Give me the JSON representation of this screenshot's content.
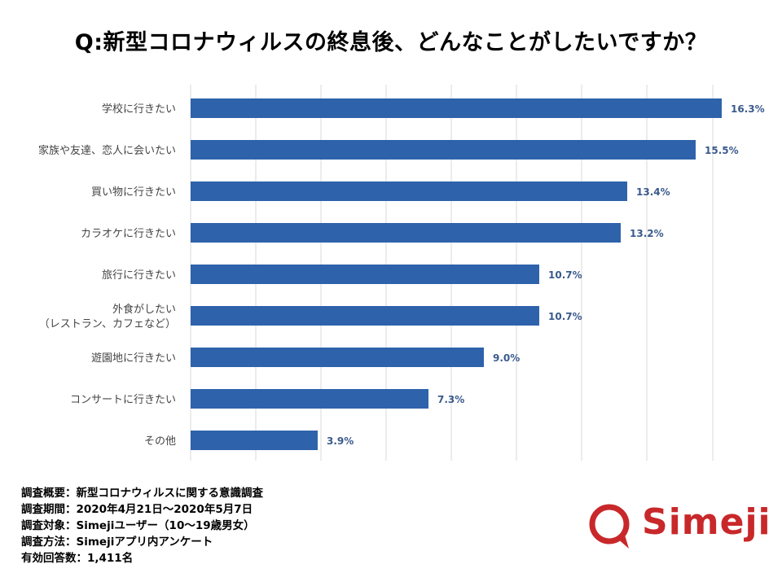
{
  "title": "Q:新型コロナウィルスの終息後、どんなことがしたいですか？",
  "chart_data": {
    "type": "bar",
    "orientation": "horizontal",
    "categories": [
      "学校に行きたい",
      "家族や友達、恋人に会いたい",
      "買い物に行きたい",
      "カラオケに行きたい",
      "旅行に行きたい",
      "外食がしたい\n（レストラン、カフェなど）",
      "遊園地に行きたい",
      "コンサートに行きたい",
      "その他"
    ],
    "values": [
      16.3,
      15.5,
      13.4,
      13.2,
      10.7,
      10.7,
      9.0,
      7.3,
      3.9
    ],
    "data_labels": [
      "16.3%",
      "15.5%",
      "13.4%",
      "13.2%",
      "10.7%",
      "10.7%",
      "9.0%",
      "7.3%",
      "3.9%"
    ],
    "xlim": [
      0,
      16.3
    ],
    "grid": true,
    "bar_color": "#2e62ab",
    "label_color": "#3a5a8c"
  },
  "notes": [
    "調査概要：新型コロナウィルスに関する意識調査",
    "調査期間：2020年4月21日～2020年5月7日",
    "調査対象：Simejiユーザー（10～19歳男女）",
    "調査方法：Simejiアプリ内アンケート",
    "有効回答数：1,411名"
  ],
  "logo": {
    "text": "Simeji",
    "color": "#c8282a",
    "icon": "speech-bubble-icon"
  }
}
